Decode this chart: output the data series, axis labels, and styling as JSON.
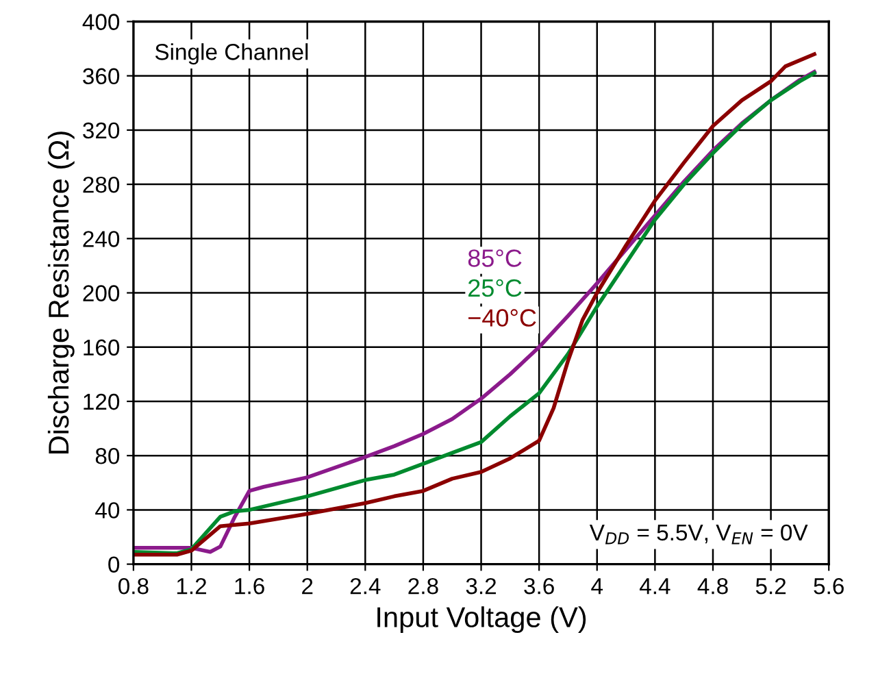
{
  "chart_data": {
    "type": "line",
    "xlabel": "Input Voltage (V)",
    "ylabel": "Discharge Resistance (Ω)",
    "annotations": [
      "Single Channel",
      "V$_{DD}$ = 5.5V, V$_{EN}$ = 0V"
    ],
    "xlim": [
      0.8,
      5.6
    ],
    "ylim": [
      0,
      400
    ],
    "xticks": [
      0.8,
      1.2,
      1.6,
      2,
      2.4,
      2.8,
      3.2,
      3.6,
      4,
      4.4,
      4.8,
      5.2,
      5.6
    ],
    "yticks": [
      0,
      40,
      80,
      120,
      160,
      200,
      240,
      280,
      320,
      360,
      400
    ],
    "grid": true,
    "legend": false,
    "marker": "none",
    "line_style": "solid",
    "series": [
      {
        "name": "85°C",
        "color": "#8b1a8b",
        "x": [
          0.8,
          1.2,
          1.33,
          1.4,
          1.5,
          1.6,
          1.7,
          2.0,
          2.4,
          2.6,
          2.8,
          3.0,
          3.2,
          3.4,
          3.6,
          3.8,
          4.0,
          4.2,
          4.4,
          4.6,
          4.8,
          5.0,
          5.2,
          5.4,
          5.5
        ],
        "values": [
          12,
          12,
          9,
          13,
          35,
          54,
          57,
          64,
          79,
          87,
          96,
          107,
          122,
          140,
          160,
          183,
          207,
          232,
          257,
          282,
          305,
          325,
          342,
          357,
          363
        ]
      },
      {
        "name": "25°C",
        "color": "#008a2e",
        "x": [
          0.8,
          1.1,
          1.2,
          1.4,
          1.5,
          1.6,
          2.0,
          2.4,
          2.6,
          2.8,
          3.0,
          3.2,
          3.4,
          3.6,
          3.8,
          4.0,
          4.2,
          4.4,
          4.6,
          4.8,
          5.0,
          5.2,
          5.4,
          5.5
        ],
        "values": [
          9,
          8,
          11,
          35,
          39,
          40,
          50,
          62,
          66,
          74,
          82,
          90,
          109,
          126,
          155,
          190,
          222,
          254,
          280,
          303,
          324,
          342,
          356,
          362
        ]
      },
      {
        "name": "−40°C",
        "color": "#8b0000",
        "x": [
          0.8,
          1.1,
          1.2,
          1.4,
          1.6,
          2.0,
          2.4,
          2.6,
          2.8,
          3.0,
          3.2,
          3.4,
          3.6,
          3.7,
          3.8,
          3.9,
          4.0,
          4.2,
          4.4,
          4.6,
          4.8,
          5.0,
          5.2,
          5.3,
          5.5
        ],
        "values": [
          7,
          7,
          10,
          28,
          30,
          37,
          45,
          50,
          54,
          63,
          68,
          78,
          91,
          115,
          150,
          180,
          200,
          235,
          268,
          296,
          323,
          342,
          356,
          367,
          376
        ]
      }
    ]
  }
}
